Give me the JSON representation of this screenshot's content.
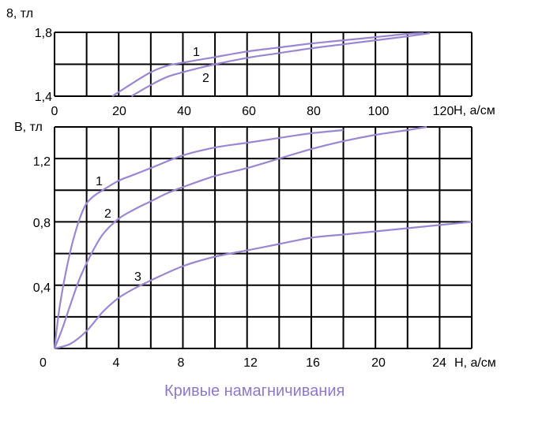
{
  "caption": "Кривые намагничивания",
  "colors": {
    "curve": "#9b86d2",
    "grid": "#000000",
    "caption": "#8f78cc"
  },
  "chart_data": [
    {
      "type": "line",
      "ylabel": "8, тл",
      "xlabel": "Н, а/см",
      "xlim": [
        0,
        130
      ],
      "ylim": [
        1.4,
        1.8
      ],
      "x_ticks": [
        "0",
        "20",
        "40",
        "60",
        "80",
        "100",
        "120"
      ],
      "y_ticks": [
        "1,8",
        "1,4"
      ],
      "grid": true,
      "series": [
        {
          "name": "1",
          "points": [
            [
              18,
              1.4
            ],
            [
              25,
              1.49
            ],
            [
              30,
              1.55
            ],
            [
              35,
              1.59
            ],
            [
              40,
              1.61
            ],
            [
              50,
              1.645
            ],
            [
              60,
              1.68
            ],
            [
              70,
              1.705
            ],
            [
              80,
              1.73
            ],
            [
              90,
              1.75
            ],
            [
              100,
              1.77
            ],
            [
              110,
              1.79
            ],
            [
              115,
              1.795
            ]
          ]
        },
        {
          "name": "2",
          "points": [
            [
              24,
              1.4
            ],
            [
              30,
              1.47
            ],
            [
              35,
              1.52
            ],
            [
              40,
              1.55
            ],
            [
              50,
              1.6
            ],
            [
              60,
              1.64
            ],
            [
              70,
              1.67
            ],
            [
              80,
              1.7
            ],
            [
              90,
              1.725
            ],
            [
              100,
              1.75
            ],
            [
              110,
              1.775
            ],
            [
              117,
              1.795
            ]
          ]
        }
      ]
    },
    {
      "type": "line",
      "ylabel": "В, тл",
      "xlabel": "Н, а/см",
      "xlim": [
        0,
        26
      ],
      "ylim": [
        0,
        1.4
      ],
      "x_ticks": [
        "0",
        "4",
        "8",
        "12",
        "16",
        "20",
        "24"
      ],
      "y_ticks": [
        "0,4",
        "0,8",
        "1,2"
      ],
      "grid": true,
      "series": [
        {
          "name": "1",
          "points": [
            [
              0,
              0
            ],
            [
              0.3,
              0.25
            ],
            [
              0.7,
              0.48
            ],
            [
              1.2,
              0.7
            ],
            [
              1.8,
              0.88
            ],
            [
              2.3,
              0.95
            ],
            [
              3,
              1.0
            ],
            [
              4,
              1.06
            ],
            [
              5,
              1.1
            ],
            [
              6,
              1.14
            ],
            [
              8,
              1.22
            ],
            [
              10,
              1.27
            ],
            [
              12,
              1.3
            ],
            [
              14,
              1.33
            ],
            [
              16,
              1.36
            ],
            [
              18,
              1.38
            ]
          ]
        },
        {
          "name": "2",
          "points": [
            [
              0,
              0
            ],
            [
              0.5,
              0.13
            ],
            [
              1,
              0.28
            ],
            [
              1.6,
              0.45
            ],
            [
              2.2,
              0.58
            ],
            [
              3,
              0.72
            ],
            [
              4,
              0.82
            ],
            [
              5,
              0.88
            ],
            [
              6,
              0.93
            ],
            [
              7,
              0.98
            ],
            [
              8,
              1.02
            ],
            [
              10,
              1.09
            ],
            [
              12,
              1.14
            ],
            [
              14,
              1.2
            ],
            [
              16,
              1.26
            ],
            [
              18,
              1.31
            ],
            [
              20,
              1.35
            ],
            [
              22,
              1.38
            ],
            [
              23.2,
              1.4
            ]
          ]
        },
        {
          "name": "3",
          "points": [
            [
              0,
              0
            ],
            [
              1,
              0.03
            ],
            [
              2,
              0.11
            ],
            [
              3,
              0.23
            ],
            [
              4,
              0.32
            ],
            [
              5,
              0.38
            ],
            [
              6,
              0.43
            ],
            [
              8,
              0.52
            ],
            [
              10,
              0.58
            ],
            [
              12,
              0.62
            ],
            [
              14,
              0.66
            ],
            [
              16,
              0.7
            ],
            [
              18,
              0.72
            ],
            [
              20,
              0.74
            ],
            [
              22,
              0.76
            ],
            [
              24,
              0.78
            ],
            [
              26,
              0.8
            ]
          ]
        }
      ]
    }
  ]
}
